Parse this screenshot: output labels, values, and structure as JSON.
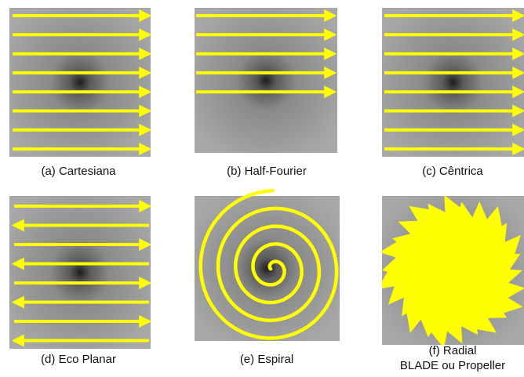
{
  "panels": [
    {
      "label": "(a) Cartesiana"
    },
    {
      "label": "(b) Half-Fourier"
    },
    {
      "label": "(c) Cêntrica"
    },
    {
      "label": "(d) Eco Planar"
    },
    {
      "label": "(e) Espiral"
    },
    {
      "label": "(f) Radial",
      "sublabel": "BLADE ou Propeller"
    }
  ]
}
